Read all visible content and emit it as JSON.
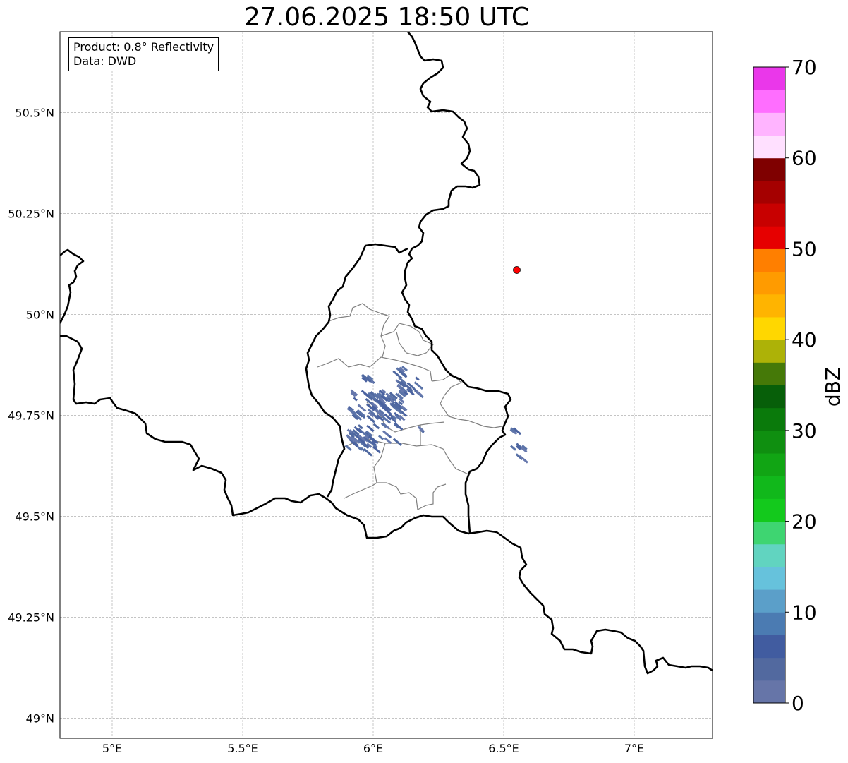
{
  "title": "27.06.2025 18:50 UTC",
  "info": {
    "product": "Product: 0.8° Reflectivity",
    "data": "Data: DWD"
  },
  "map": {
    "extent": {
      "lon": [
        4.8,
        7.3
      ],
      "lat": [
        48.95,
        50.7
      ]
    },
    "lon_ticks": [
      {
        "value": 5.0,
        "label": "5°E"
      },
      {
        "value": 5.5,
        "label": "5.5°E"
      },
      {
        "value": 6.0,
        "label": "6°E"
      },
      {
        "value": 6.5,
        "label": "6.5°E"
      },
      {
        "value": 7.0,
        "label": "7°E"
      }
    ],
    "lat_ticks": [
      {
        "value": 50.5,
        "label": "50.5°N"
      },
      {
        "value": 50.25,
        "label": "50.25°N"
      },
      {
        "value": 50.0,
        "label": "50°N"
      },
      {
        "value": 49.75,
        "label": "49.75°N"
      },
      {
        "value": 49.5,
        "label": "49.5°N"
      },
      {
        "value": 49.25,
        "label": "49.25°N"
      },
      {
        "value": 49.0,
        "label": "49°N"
      }
    ],
    "gridlines": true,
    "radar_site": {
      "lon": 6.55,
      "lat": 50.11,
      "color": "#ff0000"
    }
  },
  "colorbar": {
    "label": "dBZ",
    "min": 0,
    "max": 70,
    "ticks": [
      {
        "value": 0,
        "label": "0"
      },
      {
        "value": 10,
        "label": "10"
      },
      {
        "value": 20,
        "label": "20"
      },
      {
        "value": 30,
        "label": "30"
      },
      {
        "value": 40,
        "label": "40"
      },
      {
        "value": 50,
        "label": "50"
      },
      {
        "value": 60,
        "label": "60"
      },
      {
        "value": 70,
        "label": "70"
      }
    ],
    "colors": [
      "#6675a8",
      "#52699f",
      "#415ca0",
      "#4b7bb2",
      "#5b9fc9",
      "#66c2dc",
      "#61d4c0",
      "#3ed571",
      "#13c91c",
      "#11b81b",
      "#11a514",
      "#0f8f10",
      "#0a7a0b",
      "#075f09",
      "#457908",
      "#adb207",
      "#ffd700",
      "#ffb400",
      "#ff9b00",
      "#ff7f00",
      "#e60000",
      "#c80000",
      "#a50000",
      "#7f0000",
      "#ffe0ff",
      "#ffb4ff",
      "#ff6eff",
      "#ea37ea"
    ]
  }
}
